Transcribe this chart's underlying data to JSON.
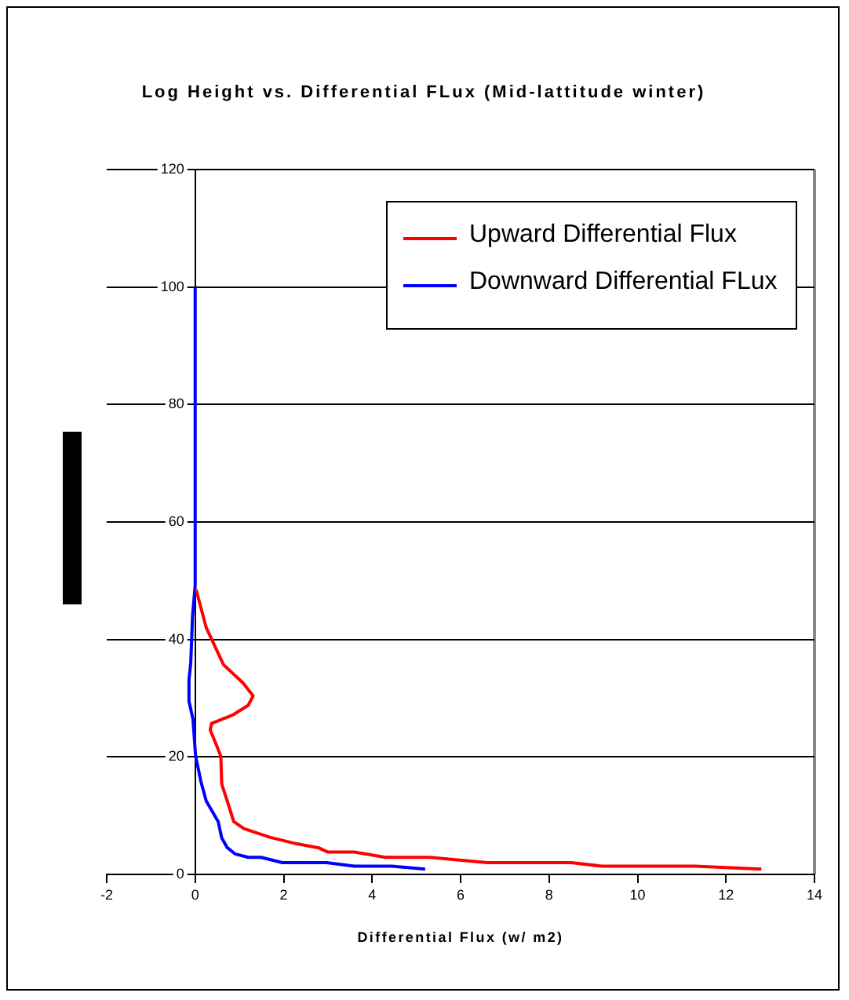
{
  "chart_data": {
    "type": "line",
    "title": "Log Height vs. Differential FLux (Mid-lattitude winter)",
    "xlabel": "Differential Flux (w/ m2)",
    "xlim": [
      -2,
      14
    ],
    "xticks": [
      -2,
      0,
      2,
      4,
      6,
      8,
      10,
      12,
      14
    ],
    "ylim": [
      0,
      120
    ],
    "yticks": [
      0,
      20,
      40,
      60,
      80,
      100,
      120
    ],
    "grid": "y",
    "legend": "top right",
    "marker": "none",
    "line_style": "solid",
    "series": [
      {
        "name": "Upward Differential Flux",
        "color": "#ff0000",
        "x": [
          12.8,
          11.3,
          9.2,
          8.5,
          6.6,
          5.3,
          4.3,
          3.6,
          3.0,
          2.8,
          2.3,
          1.7,
          1.1,
          0.87,
          0.78,
          0.69,
          0.6,
          0.58,
          0.46,
          0.34,
          0.37,
          0.84,
          1.2,
          1.31,
          1.08,
          0.64,
          0.25,
          0.02
        ],
        "values": [
          0.9,
          1.4,
          1.4,
          2,
          2,
          2.9,
          2.9,
          3.8,
          3.8,
          4.5,
          5.2,
          6.3,
          7.8,
          9,
          11.2,
          13.3,
          15.4,
          20.1,
          22.4,
          24.6,
          25.7,
          27.1,
          28.8,
          30.4,
          32.6,
          35.7,
          42,
          48.5
        ]
      },
      {
        "name": "Downward Differential FLux",
        "color": "#0000ff",
        "x": [
          5.2,
          4.45,
          3.6,
          2.97,
          1.97,
          1.49,
          1.2,
          0.9,
          0.72,
          0.6,
          0.52,
          0.25,
          0.13,
          0.07,
          0.01,
          -0.05,
          -0.14,
          -0.14,
          -0.1,
          -0.06,
          0,
          0
        ],
        "values": [
          0.9,
          1.4,
          1.4,
          2,
          2,
          2.9,
          2.9,
          3.5,
          4.6,
          6.2,
          9,
          12.5,
          15.8,
          18,
          20.1,
          26.4,
          29.5,
          33.1,
          36,
          44,
          49.2,
          100
        ]
      }
    ]
  }
}
